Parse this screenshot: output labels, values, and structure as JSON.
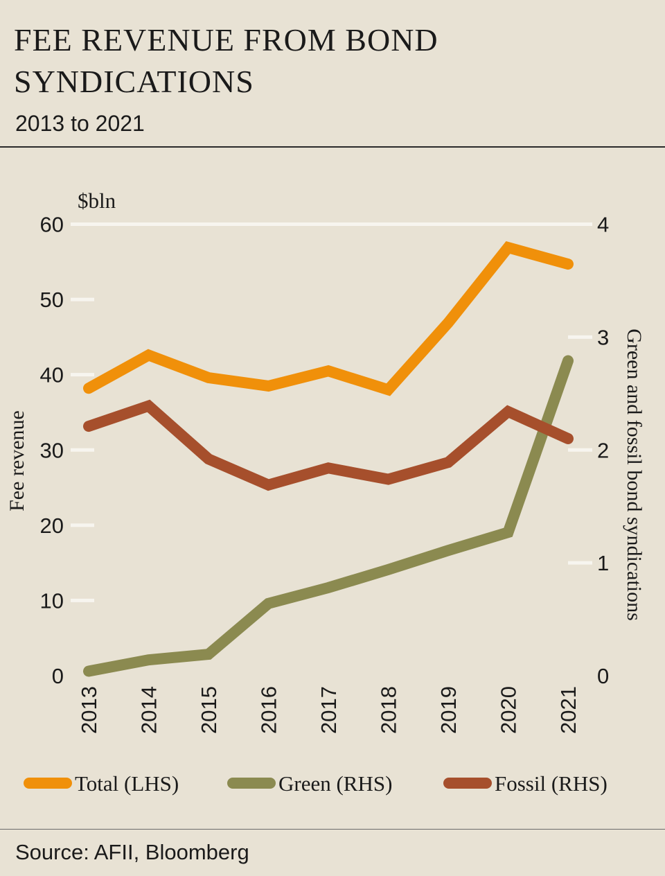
{
  "title": "FEE REVENUE FROM BOND SYNDICATIONS",
  "subtitle": "2013 to 2021",
  "source": "Source: AFII, Bloomberg",
  "chart_data": {
    "type": "line",
    "unit_label": "$bln",
    "ylabel_left": "Fee revenue",
    "ylabel_right": "Green and fossil bond syndications",
    "ylim_left": [
      0,
      60
    ],
    "ylim_right": [
      0,
      4
    ],
    "yticks_left": [
      "0",
      "10",
      "20",
      "30",
      "40",
      "50",
      "60"
    ],
    "yticks_right": [
      "0",
      "1",
      "2",
      "3",
      "4"
    ],
    "categories": [
      "2013",
      "2014",
      "2015",
      "2016",
      "2017",
      "2018",
      "2019",
      "2020",
      "2021"
    ],
    "legend_position": "bottom",
    "series": [
      {
        "name": "Total (LHS)",
        "axis": "left",
        "color": "#f0900a",
        "values": [
          38.2,
          42.6,
          39.6,
          38.5,
          40.5,
          38.0,
          46.9,
          56.9,
          54.7
        ]
      },
      {
        "name": "Green (RHS)",
        "axis": "right",
        "color": "#8b8a50",
        "values": [
          0.04,
          0.14,
          0.19,
          0.64,
          0.78,
          0.94,
          1.11,
          1.27,
          2.79
        ]
      },
      {
        "name": "Fossil (RHS)",
        "axis": "right",
        "color": "#a64f2c",
        "values": [
          2.21,
          2.39,
          1.92,
          1.69,
          1.84,
          1.74,
          1.89,
          2.34,
          2.1
        ]
      }
    ]
  }
}
